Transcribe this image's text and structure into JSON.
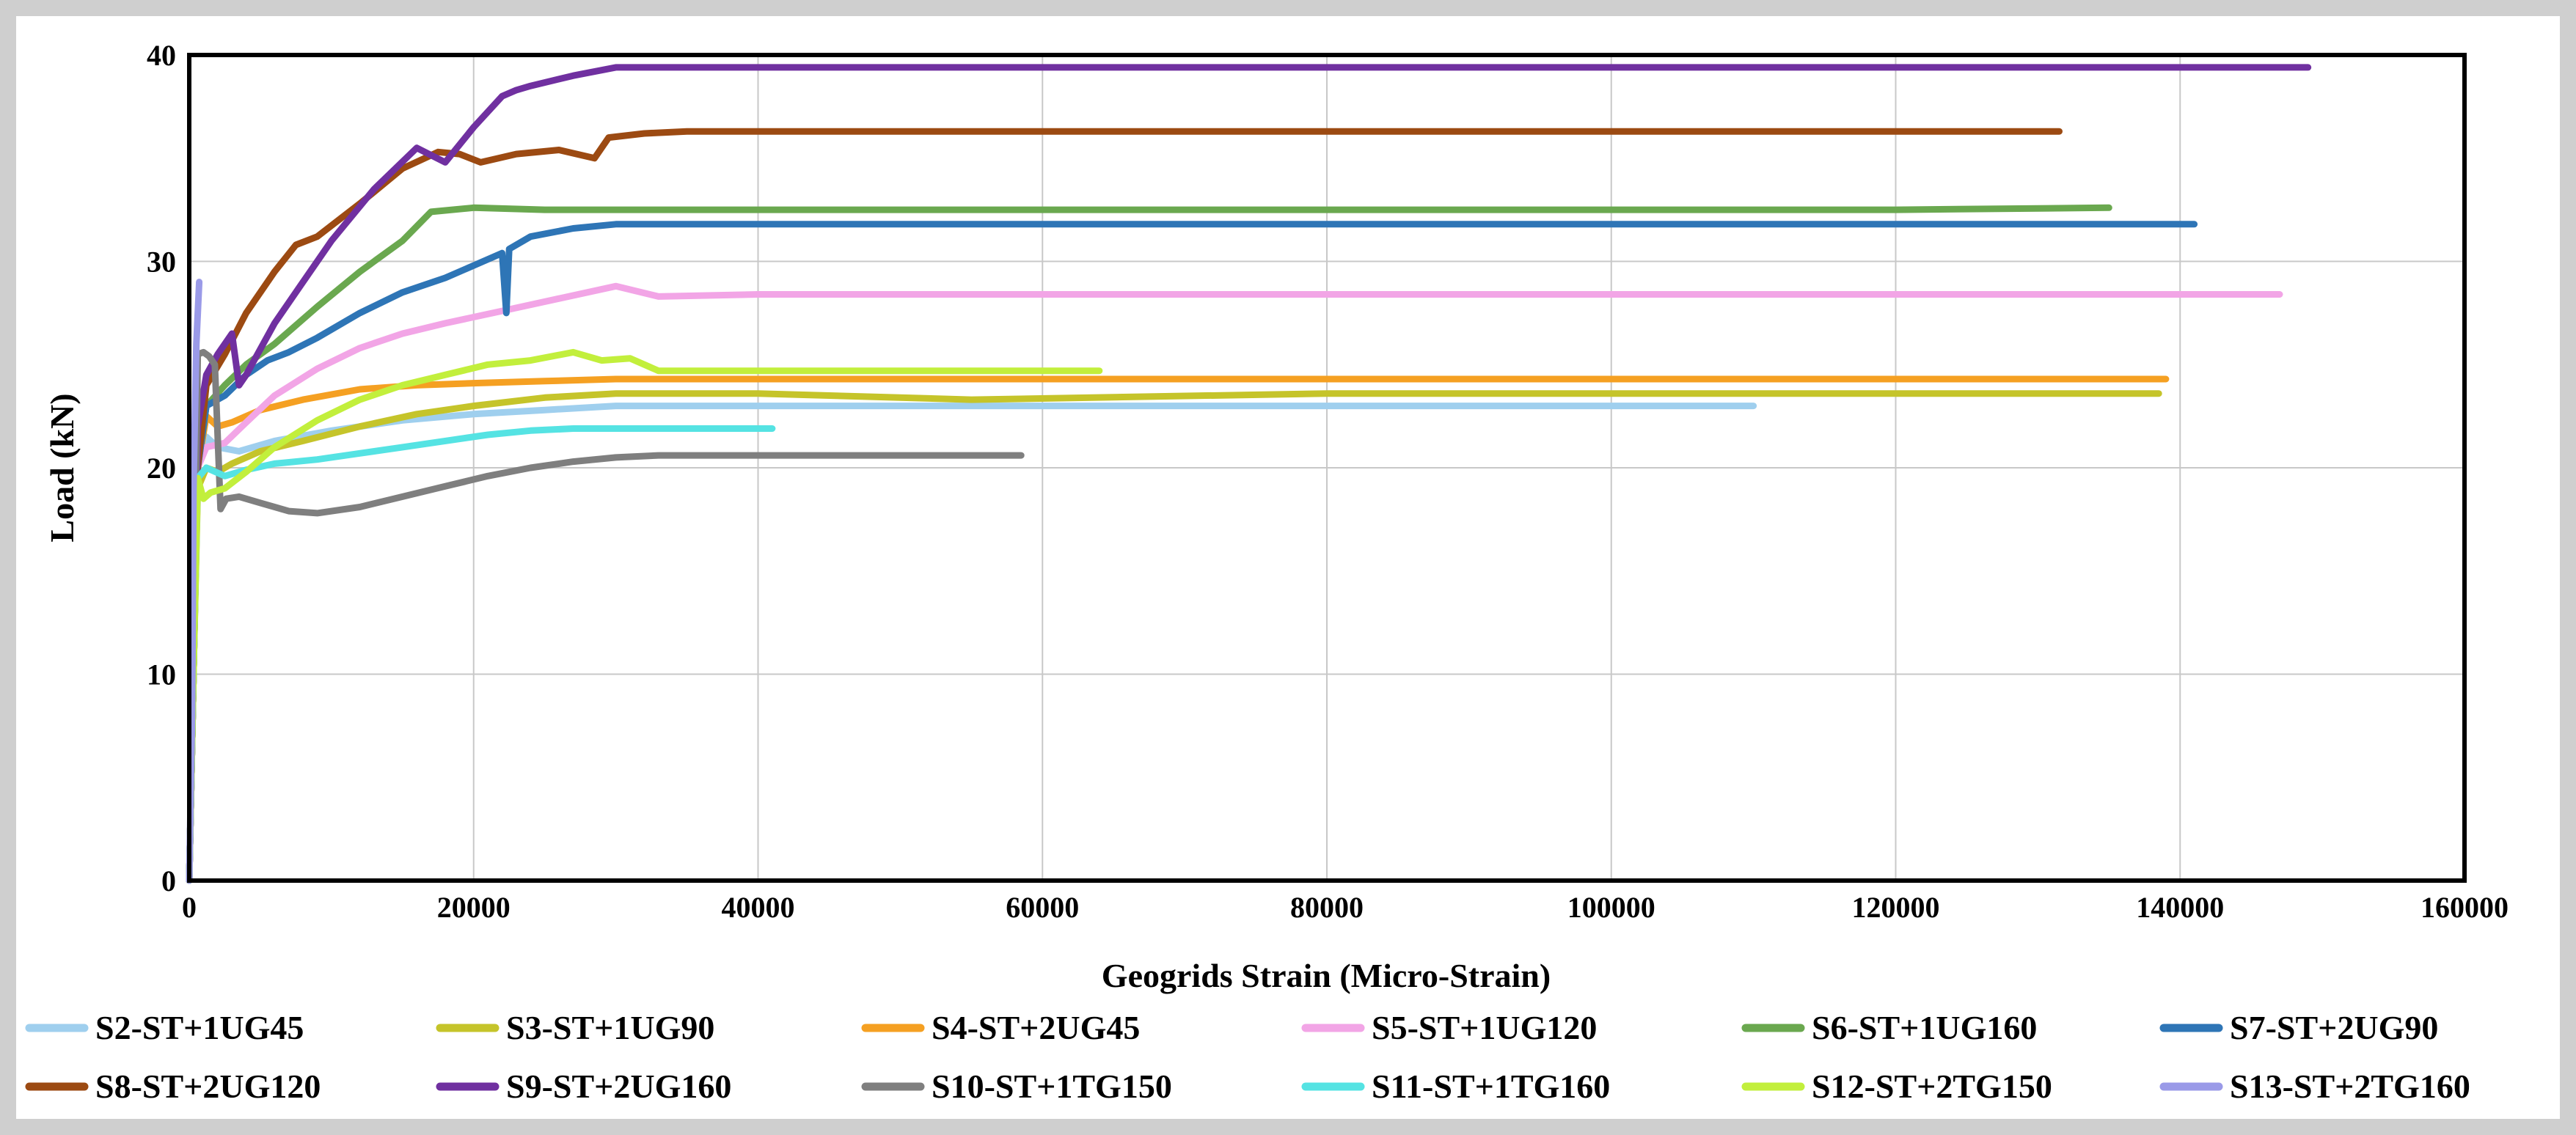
{
  "chart_data": {
    "type": "line",
    "title": "",
    "xlabel": "Geogrids Strain (Micro-Strain)",
    "ylabel": "Load (kN)",
    "xlim": [
      0,
      160000
    ],
    "ylim": [
      0,
      40
    ],
    "xticks": [
      0,
      20000,
      40000,
      60000,
      80000,
      100000,
      120000,
      140000,
      160000
    ],
    "yticks": [
      0,
      10,
      20,
      30,
      40
    ],
    "grid": true,
    "legend_position": "bottom",
    "series": [
      {
        "name": "S2-ST+1UG45",
        "color": "#9fcfee",
        "x": [
          0,
          300,
          600,
          1200,
          2000,
          3500,
          6000,
          10000,
          15000,
          20000,
          25000,
          30000,
          40000,
          60000,
          80000,
          100000,
          110000
        ],
        "y": [
          0,
          10,
          20,
          21.5,
          21,
          20.8,
          21.3,
          21.8,
          22.3,
          22.6,
          22.8,
          23,
          23,
          23,
          23,
          23,
          23
        ]
      },
      {
        "name": "S3-ST+1UG90",
        "color": "#c5c42a",
        "x": [
          0,
          300,
          600,
          1200,
          2000,
          3000,
          5000,
          8000,
          12000,
          16000,
          20000,
          25000,
          30000,
          40000,
          55000,
          80000,
          100000,
          120000,
          138500
        ],
        "y": [
          0,
          10,
          19,
          20,
          19.8,
          20.2,
          20.8,
          21.3,
          22,
          22.6,
          23,
          23.4,
          23.6,
          23.6,
          23.3,
          23.6,
          23.6,
          23.6,
          23.6
        ]
      },
      {
        "name": "S4-ST+2UG45",
        "color": "#f5a022",
        "x": [
          0,
          300,
          600,
          1200,
          2000,
          3000,
          5000,
          8000,
          12000,
          16000,
          20000,
          25000,
          30000,
          40000,
          60000,
          80000,
          100000,
          120000,
          139000
        ],
        "y": [
          0,
          10,
          20,
          22.5,
          22,
          22.2,
          22.8,
          23.3,
          23.8,
          24,
          24.1,
          24.2,
          24.3,
          24.3,
          24.3,
          24.3,
          24.3,
          24.3,
          24.3
        ]
      },
      {
        "name": "S5-ST+1UG120",
        "color": "#f2a5e6",
        "x": [
          0,
          300,
          600,
          1200,
          2500,
          4000,
          6000,
          9000,
          12000,
          15000,
          18000,
          22000,
          26000,
          30000,
          33000,
          40000,
          50000,
          60000,
          80000,
          100000,
          120000,
          147000
        ],
        "y": [
          0,
          10,
          20,
          21,
          21.2,
          22.2,
          23.5,
          24.8,
          25.8,
          26.5,
          27,
          27.6,
          28.2,
          28.8,
          28.3,
          28.4,
          28.4,
          28.4,
          28.4,
          28.4,
          28.4,
          28.4
        ]
      },
      {
        "name": "S6-ST+1UG160",
        "color": "#6aa84f",
        "x": [
          0,
          300,
          600,
          1200,
          2500,
          4000,
          6000,
          9000,
          12000,
          15000,
          17000,
          20000,
          25000,
          30000,
          40000,
          60000,
          80000,
          100000,
          120000,
          135000
        ],
        "y": [
          0,
          10,
          20,
          23,
          24,
          25,
          26,
          27.8,
          29.5,
          31,
          32.4,
          32.6,
          32.5,
          32.5,
          32.5,
          32.5,
          32.5,
          32.5,
          32.5,
          32.6
        ]
      },
      {
        "name": "S7-ST+2UG90",
        "color": "#2e75b6",
        "x": [
          0,
          300,
          600,
          1200,
          2500,
          4000,
          5500,
          7000,
          9000,
          12000,
          15000,
          18000,
          20000,
          22000,
          22300,
          22500,
          24000,
          27000,
          30000,
          40000,
          60000,
          80000,
          100000,
          120000,
          141000
        ],
        "y": [
          0,
          10,
          20,
          23,
          23.5,
          24.5,
          25.2,
          25.6,
          26.3,
          27.5,
          28.5,
          29.2,
          29.8,
          30.4,
          27.5,
          30.6,
          31.2,
          31.6,
          31.8,
          31.8,
          31.8,
          31.8,
          31.8,
          31.8,
          31.8
        ]
      },
      {
        "name": "S8-ST+2UG120",
        "color": "#9c4a12",
        "x": [
          0,
          300,
          600,
          1200,
          2500,
          4000,
          6000,
          7500,
          9000,
          12000,
          15000,
          17500,
          19000,
          20500,
          23000,
          26000,
          28500,
          29500,
          32000,
          35000,
          40000,
          50000,
          60000,
          80000,
          100000,
          120000,
          131500
        ],
        "y": [
          0,
          10,
          20,
          24,
          25.5,
          27.5,
          29.5,
          30.8,
          31.2,
          32.8,
          34.5,
          35.3,
          35.2,
          34.8,
          35.2,
          35.4,
          35.0,
          36.0,
          36.2,
          36.3,
          36.3,
          36.3,
          36.3,
          36.3,
          36.3,
          36.3,
          36.3
        ]
      },
      {
        "name": "S9-ST+2UG160",
        "color": "#7030a0",
        "x": [
          0,
          300,
          600,
          1200,
          2000,
          3000,
          3500,
          4000,
          6000,
          8000,
          10000,
          13000,
          16000,
          18000,
          20000,
          22000,
          23000,
          24000,
          27000,
          30000,
          35000,
          40000,
          50000,
          60000,
          80000,
          100000,
          120000,
          149000
        ],
        "y": [
          0,
          10,
          22,
          24.5,
          25.5,
          26.5,
          24,
          24.5,
          27,
          29,
          31,
          33.5,
          35.5,
          34.8,
          36.5,
          38,
          38.3,
          38.5,
          39,
          39.4,
          39.4,
          39.4,
          39.4,
          39.4,
          39.4,
          39.4,
          39.4,
          39.4
        ]
      },
      {
        "name": "S10-ST+1TG150",
        "color": "#7f7f7f",
        "x": [
          0,
          300,
          600,
          1000,
          1400,
          1800,
          2200,
          2600,
          3500,
          5000,
          7000,
          9000,
          12000,
          15000,
          18000,
          21000,
          24000,
          27000,
          30000,
          33000,
          36000,
          40000,
          50000,
          58500
        ],
        "y": [
          0,
          10,
          25.5,
          25.6,
          25.4,
          25.0,
          18.0,
          18.5,
          18.6,
          18.3,
          17.9,
          17.8,
          18.1,
          18.6,
          19.1,
          19.6,
          20.0,
          20.3,
          20.5,
          20.6,
          20.6,
          20.6,
          20.6,
          20.6
        ]
      },
      {
        "name": "S11-ST+1TG160",
        "color": "#55e3e3",
        "x": [
          0,
          300,
          600,
          1200,
          2500,
          4000,
          6000,
          9000,
          12000,
          15000,
          18000,
          21000,
          24000,
          27000,
          30000,
          35000,
          41000
        ],
        "y": [
          0,
          10,
          19.5,
          20.0,
          19.6,
          19.9,
          20.2,
          20.4,
          20.7,
          21.0,
          21.3,
          21.6,
          21.8,
          21.9,
          21.9,
          21.9,
          21.9
        ]
      },
      {
        "name": "S12-ST+2TG150",
        "color": "#c2ef3c",
        "x": [
          0,
          300,
          600,
          1000,
          1500,
          2500,
          4000,
          6000,
          9000,
          12000,
          15000,
          18000,
          21000,
          24000,
          27000,
          29000,
          31000,
          33000,
          40000,
          50000,
          64000
        ],
        "y": [
          0,
          10,
          19.5,
          18.5,
          18.8,
          19.0,
          19.8,
          21.0,
          22.3,
          23.3,
          24.0,
          24.5,
          25.0,
          25.2,
          25.6,
          25.2,
          25.3,
          24.7,
          24.7,
          24.7,
          24.7
        ]
      },
      {
        "name": "S13-ST+2TG160",
        "color": "#9a9ae8",
        "x": [
          0,
          200,
          300,
          500,
          700
        ],
        "y": [
          0,
          8,
          19,
          26,
          29
        ]
      }
    ]
  }
}
